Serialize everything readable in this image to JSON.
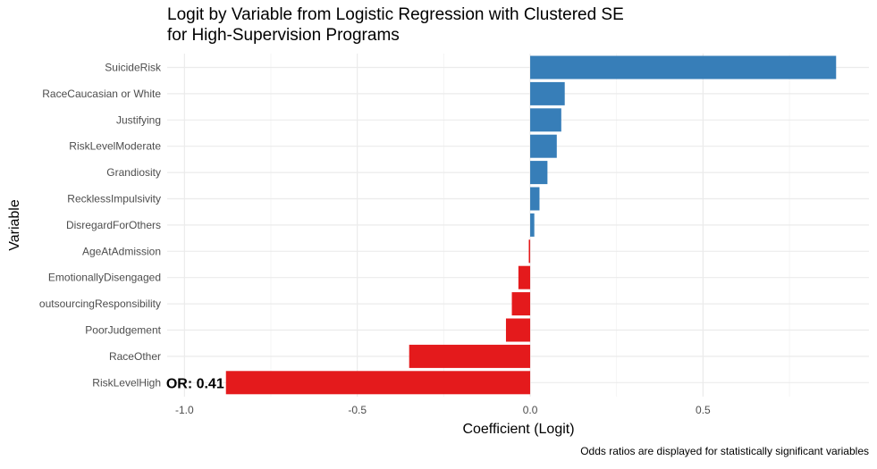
{
  "chart_data": {
    "type": "bar",
    "orientation": "horizontal",
    "title": "Logit by Variable from Logistic Regression with Clustered SE",
    "subtitle": "for High-Supervision Programs",
    "xlabel": "Coefficient (Logit)",
    "ylabel": "Variable",
    "caption": "Odds ratios are displayed for statistically significant variables",
    "xlim": [
      -1.05,
      0.98
    ],
    "xticks": [
      -1.0,
      -0.5,
      0.0,
      0.5
    ],
    "xtick_labels": [
      "-1.0",
      "-0.5",
      "0.0",
      "0.5"
    ],
    "grid": true,
    "categories": [
      "SuicideRisk",
      "RaceCaucasian or White",
      "Justifying",
      "RiskLevelModerate",
      "Grandiosity",
      "RecklessImpulsivity",
      "DisregardForOthers",
      "AgeAtAdmission",
      "EmotionallyDisengaged",
      "outsourcingResponsibility",
      "PoorJudgement",
      "RaceOther",
      "RiskLevelHigh"
    ],
    "values": [
      0.885,
      0.1,
      0.09,
      0.077,
      0.05,
      0.027,
      0.012,
      -0.004,
      -0.034,
      -0.053,
      -0.07,
      -0.35,
      -0.88
    ],
    "colors": {
      "positive": "#377EB8",
      "negative": "#E41A1C"
    },
    "annotations": [
      {
        "category": "RiskLevelHigh",
        "text": "OR: 0.41"
      }
    ]
  }
}
